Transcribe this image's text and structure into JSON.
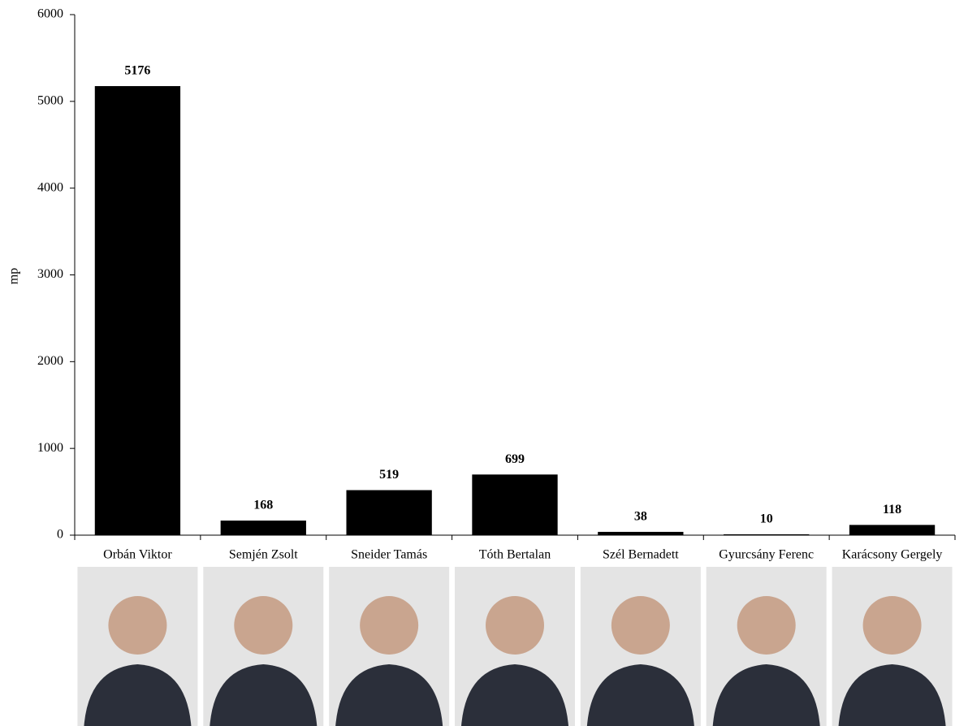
{
  "chart_data": {
    "type": "bar",
    "y_label": "mp",
    "categories": [
      "Orbán Viktor",
      "Semjén Zsolt",
      "Sneider Tamás",
      "Tóth Bertalan",
      "Szél Bernadett",
      "Gyurcsány Ferenc",
      "Karácsony Gergely"
    ],
    "values": [
      5176,
      168,
      519,
      699,
      38,
      10,
      118
    ],
    "color": "#000000",
    "ylim": [
      0,
      6000
    ],
    "yticks": [
      0,
      1000,
      2000,
      3000,
      4000,
      5000,
      6000
    ],
    "grid": false
  }
}
